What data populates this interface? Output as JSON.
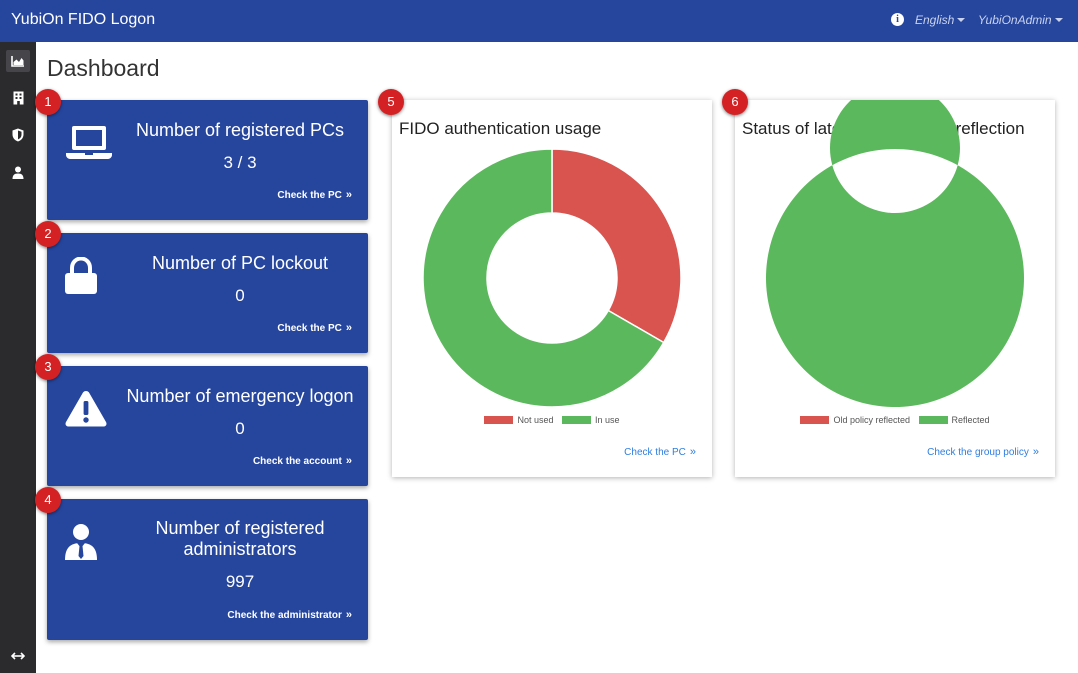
{
  "app": {
    "title": "YubiOn FIDO Logon"
  },
  "header": {
    "language": "English",
    "user": "YubiOnAdmin"
  },
  "page": {
    "title": "Dashboard"
  },
  "cards": [
    {
      "title": "Number of registered PCs",
      "value": "3 / 3",
      "link": "Check the PC",
      "badge": "1",
      "icon": "laptop-icon"
    },
    {
      "title": "Number of PC lockout",
      "value": "0",
      "link": "Check the PC",
      "badge": "2",
      "icon": "lock-icon"
    },
    {
      "title": "Number of emergency logon",
      "value": "0",
      "link": "Check the account",
      "badge": "3",
      "icon": "warning-icon"
    },
    {
      "title": "Number of registered administrators",
      "value": "997",
      "link": "Check the administrator",
      "badge": "4",
      "icon": "administrator-icon"
    }
  ],
  "panels": [
    {
      "title": "FIDO authentication usage",
      "link": "Check the PC",
      "badge": "5"
    },
    {
      "title": "Status of latest group policy reflection",
      "link": "Check the group policy",
      "badge": "6"
    }
  ],
  "colors": {
    "header": "#26469e",
    "sidebar": "#2b2b2e",
    "red": "#d9534f",
    "green": "#5cb85c",
    "badge": "#d42224",
    "link": "#2f7ee0"
  },
  "chart_data": [
    {
      "type": "pie",
      "title": "FIDO authentication usage",
      "categories": [
        "Not used",
        "In use"
      ],
      "values": [
        1,
        2
      ],
      "colors": [
        "#d9534f",
        "#5cb85c"
      ],
      "legend": "bottom"
    },
    {
      "type": "pie",
      "title": "Status of latest group policy reflection",
      "categories": [
        "Old policy reflected",
        "Reflected"
      ],
      "values": [
        0,
        3
      ],
      "colors": [
        "#d9534f",
        "#5cb85c"
      ],
      "legend": "bottom"
    }
  ]
}
